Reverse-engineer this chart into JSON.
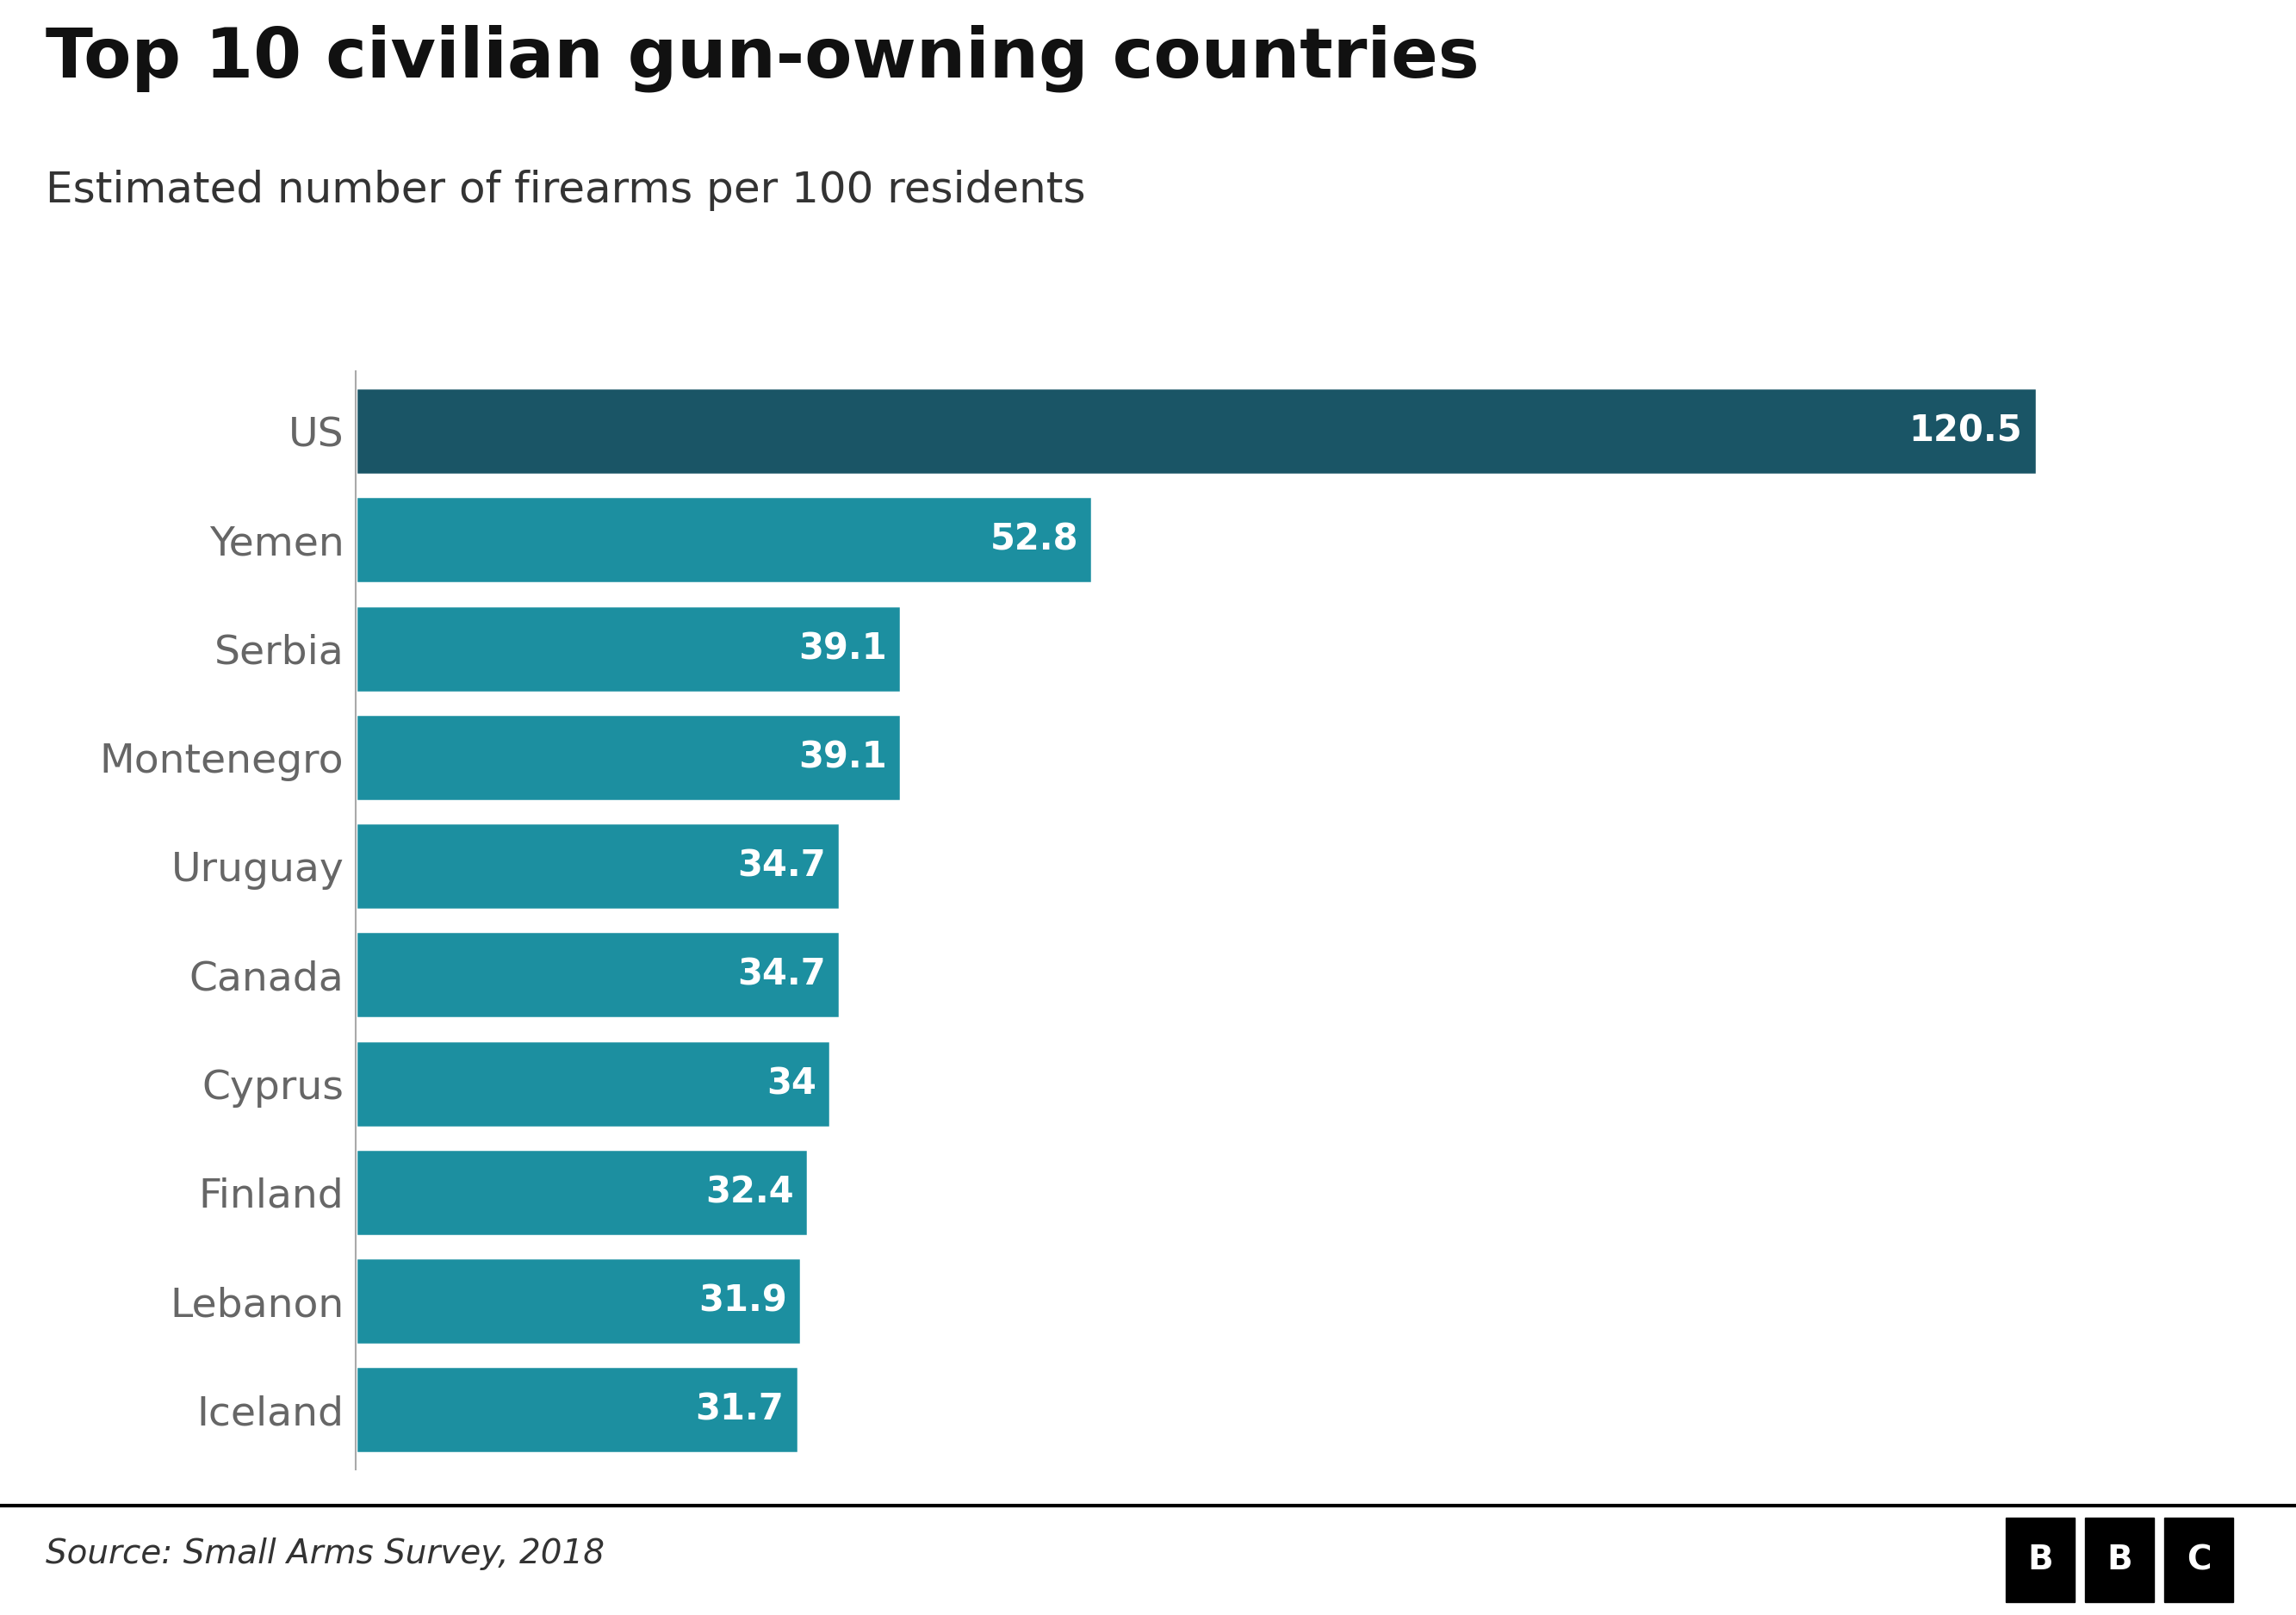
{
  "title": "Top 10 civilian gun-owning countries",
  "subtitle": "Estimated number of firearms per 100 residents",
  "source": "Source: Small Arms Survey, 2018",
  "categories": [
    "US",
    "Yemen",
    "Serbia",
    "Montenegro",
    "Uruguay",
    "Canada",
    "Cyprus",
    "Finland",
    "Lebanon",
    "Iceland"
  ],
  "values": [
    120.5,
    52.8,
    39.1,
    39.1,
    34.7,
    34.7,
    34,
    32.4,
    31.9,
    31.7
  ],
  "labels": [
    "120.5",
    "52.8",
    "39.1",
    "39.1",
    "34.7",
    "34.7",
    "34",
    "32.4",
    "31.9",
    "31.7"
  ],
  "bar_color_us": "#1a5566",
  "bar_color_others": "#1c8fa0",
  "background_color": "#ffffff",
  "title_fontsize": 58,
  "subtitle_fontsize": 36,
  "tick_fontsize": 34,
  "source_fontsize": 28,
  "bar_label_fontsize": 30,
  "xlim": [
    0,
    135
  ]
}
